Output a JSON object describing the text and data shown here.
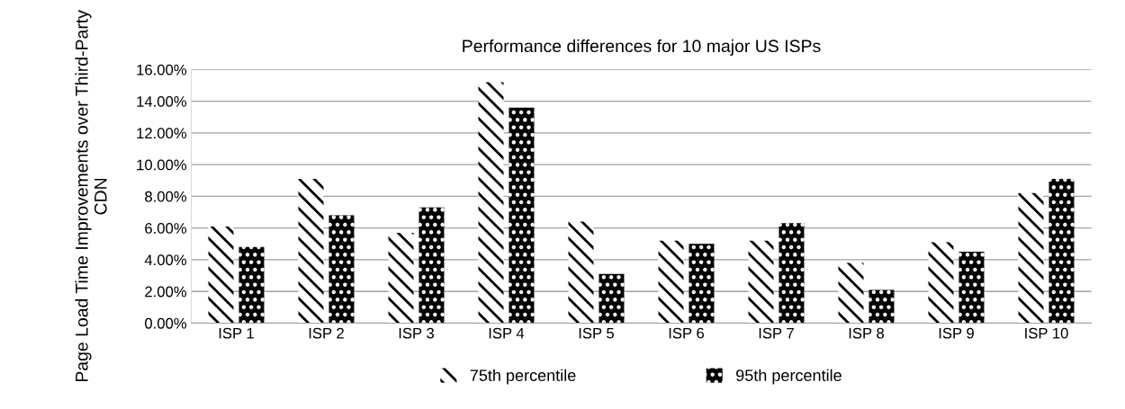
{
  "chart_data": {
    "type": "bar",
    "title": "Performance differences for 10 major US ISPs",
    "ylabel": "Page Load Time Improvements over Third-Party CDN",
    "categories": [
      "ISP 1",
      "ISP 2",
      "ISP 3",
      "ISP 4",
      "ISP 5",
      "ISP 6",
      "ISP 7",
      "ISP 8",
      "ISP 9",
      "ISP 10"
    ],
    "series": [
      {
        "name": "75th percentile",
        "color": "#000000",
        "values": [
          6.1,
          9.1,
          5.7,
          15.2,
          6.4,
          5.2,
          5.2,
          3.8,
          5.1,
          8.2
        ]
      },
      {
        "name": "95th percentile",
        "color": "#000000",
        "values": [
          4.8,
          6.8,
          7.3,
          13.6,
          3.1,
          5.0,
          6.3,
          2.1,
          4.5,
          9.1
        ]
      }
    ],
    "ylim": [
      0,
      16
    ],
    "yticks": [
      {
        "value": 0,
        "label": "0.00%"
      },
      {
        "value": 2,
        "label": "2.00%"
      },
      {
        "value": 4,
        "label": "4.00%"
      },
      {
        "value": 6,
        "label": "6.00%"
      },
      {
        "value": 8,
        "label": "8.00%"
      },
      {
        "value": 10,
        "label": "10.00%"
      },
      {
        "value": 12,
        "label": "12.00%"
      },
      {
        "value": 14,
        "label": "14.00%"
      },
      {
        "value": 16,
        "label": "16.00%"
      }
    ],
    "grid": "y",
    "legend": "bottom"
  }
}
